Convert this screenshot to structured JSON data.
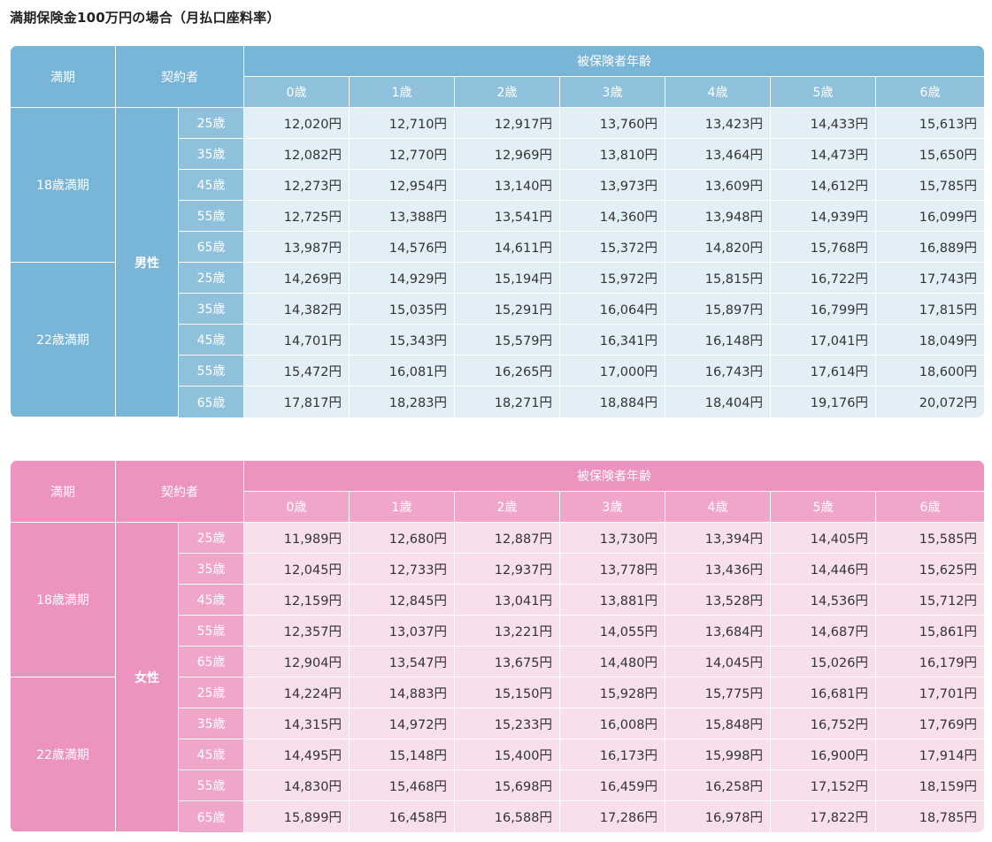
{
  "title": "満期保険金100万円の場合（月払口座料率）",
  "header": {
    "term_label": "満期",
    "contractor_label": "契約者",
    "insured_age_label": "被保険者年齢",
    "insured_ages": [
      "0歳",
      "1歳",
      "2歳",
      "3歳",
      "4歳",
      "5歳",
      "6歳"
    ]
  },
  "tables": [
    {
      "theme": "blue",
      "sex": "男性",
      "groups": [
        {
          "term": "18歳満期",
          "rows": [
            {
              "age": "25歳",
              "values": [
                "12,020円",
                "12,710円",
                "12,917円",
                "13,760円",
                "13,423円",
                "14,433円",
                "15,613円"
              ]
            },
            {
              "age": "35歳",
              "values": [
                "12,082円",
                "12,770円",
                "12,969円",
                "13,810円",
                "13,464円",
                "14,473円",
                "15,650円"
              ]
            },
            {
              "age": "45歳",
              "values": [
                "12,273円",
                "12,954円",
                "13,140円",
                "13,973円",
                "13,609円",
                "14,612円",
                "15,785円"
              ]
            },
            {
              "age": "55歳",
              "values": [
                "12,725円",
                "13,388円",
                "13,541円",
                "14,360円",
                "13,948円",
                "14,939円",
                "16,099円"
              ]
            },
            {
              "age": "65歳",
              "values": [
                "13,987円",
                "14,576円",
                "14,611円",
                "15,372円",
                "14,820円",
                "15,768円",
                "16,889円"
              ]
            }
          ]
        },
        {
          "term": "22歳満期",
          "rows": [
            {
              "age": "25歳",
              "values": [
                "14,269円",
                "14,929円",
                "15,194円",
                "15,972円",
                "15,815円",
                "16,722円",
                "17,743円"
              ]
            },
            {
              "age": "35歳",
              "values": [
                "14,382円",
                "15,035円",
                "15,291円",
                "16,064円",
                "15,897円",
                "16,799円",
                "17,815円"
              ]
            },
            {
              "age": "45歳",
              "values": [
                "14,701円",
                "15,343円",
                "15,579円",
                "16,341円",
                "16,148円",
                "17,041円",
                "18,049円"
              ]
            },
            {
              "age": "55歳",
              "values": [
                "15,472円",
                "16,081円",
                "16,265円",
                "17,000円",
                "16,743円",
                "17,614円",
                "18,600円"
              ]
            },
            {
              "age": "65歳",
              "values": [
                "17,817円",
                "18,283円",
                "18,271円",
                "18,884円",
                "18,404円",
                "19,176円",
                "20,072円"
              ]
            }
          ]
        }
      ]
    },
    {
      "theme": "pink",
      "sex": "女性",
      "groups": [
        {
          "term": "18歳満期",
          "rows": [
            {
              "age": "25歳",
              "values": [
                "11,989円",
                "12,680円",
                "12,887円",
                "13,730円",
                "13,394円",
                "14,405円",
                "15,585円"
              ]
            },
            {
              "age": "35歳",
              "values": [
                "12,045円",
                "12,733円",
                "12,937円",
                "13,778円",
                "13,436円",
                "14,446円",
                "15,625円"
              ]
            },
            {
              "age": "45歳",
              "values": [
                "12,159円",
                "12,845円",
                "13,041円",
                "13,881円",
                "13,528円",
                "14,536円",
                "15,712円"
              ]
            },
            {
              "age": "55歳",
              "values": [
                "12,357円",
                "13,037円",
                "13,221円",
                "14,055円",
                "13,684円",
                "14,687円",
                "15,861円"
              ]
            },
            {
              "age": "65歳",
              "values": [
                "12,904円",
                "13,547円",
                "13,675円",
                "14,480円",
                "14,045円",
                "15,026円",
                "16,179円"
              ]
            }
          ]
        },
        {
          "term": "22歳満期",
          "rows": [
            {
              "age": "25歳",
              "values": [
                "14,224円",
                "14,883円",
                "15,150円",
                "15,928円",
                "15,775円",
                "16,681円",
                "17,701円"
              ]
            },
            {
              "age": "35歳",
              "values": [
                "14,315円",
                "14,972円",
                "15,233円",
                "16,008円",
                "15,848円",
                "16,752円",
                "17,769円"
              ]
            },
            {
              "age": "45歳",
              "values": [
                "14,495円",
                "15,148円",
                "15,400円",
                "16,173円",
                "15,998円",
                "16,900円",
                "17,914円"
              ]
            },
            {
              "age": "55歳",
              "values": [
                "14,830円",
                "15,468円",
                "15,698円",
                "16,459円",
                "16,258円",
                "17,152円",
                "18,159円"
              ]
            },
            {
              "age": "65歳",
              "values": [
                "15,899円",
                "16,458円",
                "16,588円",
                "17,286円",
                "16,978円",
                "17,822円",
                "18,785円"
              ]
            }
          ]
        }
      ]
    }
  ]
}
